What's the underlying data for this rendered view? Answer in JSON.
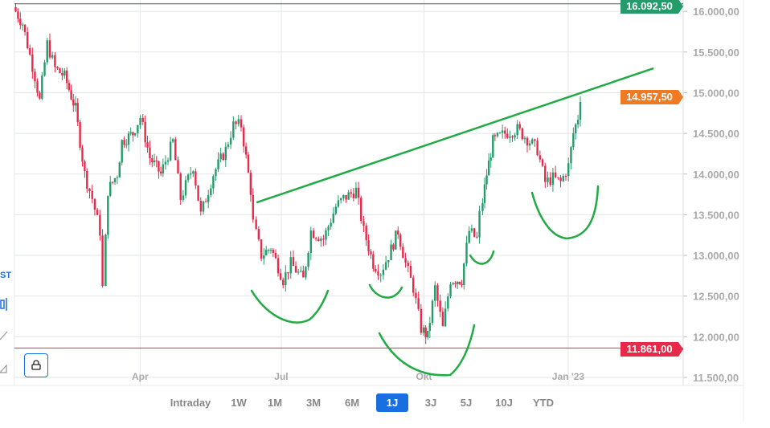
{
  "chart_data": {
    "type": "candlestick",
    "y_ticks": [
      "11.500,00",
      "12.000,00",
      "12.500,00",
      "13.000,00",
      "13.500,00",
      "14.000,00",
      "14.500,00",
      "15.000,00",
      "15.500,00",
      "16.000,00"
    ],
    "y_tick_values": [
      11500,
      12000,
      12500,
      13000,
      13500,
      14000,
      14500,
      15000,
      15500,
      16000
    ],
    "ylim": [
      11450,
      16150
    ],
    "x_ticks": [
      {
        "label": "Apr",
        "date": "2022-04-01"
      },
      {
        "label": "Jul",
        "date": "2022-07-01"
      },
      {
        "label": "Okt",
        "date": "2022-10-01"
      },
      {
        "label": "Jan '23",
        "date": "2023-01-02"
      }
    ],
    "xlim": [
      "2022-01-10",
      "2023-01-11"
    ],
    "grid": true,
    "closes": [
      [
        "2022-01-10",
        16050
      ],
      [
        "2022-01-16",
        15850
      ],
      [
        "2022-01-24",
        15200
      ],
      [
        "2022-01-27",
        14900
      ],
      [
        "2022-02-01",
        15600
      ],
      [
        "2022-02-06",
        15300
      ],
      [
        "2022-02-12",
        15200
      ],
      [
        "2022-02-19",
        14800
      ],
      [
        "2022-02-25",
        14000
      ],
      [
        "2022-03-02",
        13700
      ],
      [
        "2022-03-07",
        13300
      ],
      [
        "2022-03-09",
        12600
      ],
      [
        "2022-03-12",
        13800
      ],
      [
        "2022-03-18",
        14000
      ],
      [
        "2022-03-21",
        14400
      ],
      [
        "2022-03-28",
        14500
      ],
      [
        "2022-04-02",
        14700
      ],
      [
        "2022-04-08",
        14200
      ],
      [
        "2022-04-15",
        14000
      ],
      [
        "2022-04-23",
        14400
      ],
      [
        "2022-04-28",
        13700
      ],
      [
        "2022-05-06",
        14100
      ],
      [
        "2022-05-11",
        13500
      ],
      [
        "2022-05-19",
        14000
      ],
      [
        "2022-05-27",
        14300
      ],
      [
        "2022-06-01",
        14600
      ],
      [
        "2022-06-06",
        14600
      ],
      [
        "2022-06-12",
        13800
      ],
      [
        "2022-06-14",
        13400
      ],
      [
        "2022-06-19",
        13000
      ],
      [
        "2022-06-25",
        13100
      ],
      [
        "2022-07-03",
        12700
      ],
      [
        "2022-07-08",
        12900
      ],
      [
        "2022-07-16",
        12700
      ],
      [
        "2022-07-21",
        13300
      ],
      [
        "2022-07-29",
        13200
      ],
      [
        "2022-08-06",
        13600
      ],
      [
        "2022-08-11",
        13700
      ],
      [
        "2022-08-19",
        13800
      ],
      [
        "2022-08-24",
        13300
      ],
      [
        "2022-08-30",
        12900
      ],
      [
        "2022-09-04",
        12800
      ],
      [
        "2022-09-09",
        13000
      ],
      [
        "2022-09-15",
        13300
      ],
      [
        "2022-09-20",
        12900
      ],
      [
        "2022-09-25",
        12600
      ],
      [
        "2022-09-30",
        12100
      ],
      [
        "2022-10-04",
        12000
      ],
      [
        "2022-10-09",
        12600
      ],
      [
        "2022-10-14",
        12100
      ],
      [
        "2022-10-19",
        12700
      ],
      [
        "2022-10-26",
        12700
      ],
      [
        "2022-10-31",
        13300
      ],
      [
        "2022-11-05",
        13200
      ],
      [
        "2022-11-07",
        13500
      ],
      [
        "2022-11-11",
        14000
      ],
      [
        "2022-11-15",
        14400
      ],
      [
        "2022-11-23",
        14500
      ],
      [
        "2022-12-01",
        14550
      ],
      [
        "2022-12-09",
        14400
      ],
      [
        "2022-12-14",
        14300
      ],
      [
        "2022-12-19",
        13900
      ],
      [
        "2022-12-24",
        13950
      ],
      [
        "2022-12-29",
        13900
      ],
      [
        "2023-01-03",
        14100
      ],
      [
        "2023-01-06",
        14500
      ],
      [
        "2023-01-09",
        14700
      ],
      [
        "2023-01-11",
        14950
      ]
    ],
    "trendline": {
      "from": [
        "2022-06-15",
        13650
      ],
      "to": [
        "2023-02-26",
        15300
      ]
    },
    "horizontal_lines": [
      {
        "value": 16092.5,
        "label": "16.092,50",
        "color": "#239b6a"
      },
      {
        "value": 11861,
        "label": "11.861,00",
        "color": "#e8294a"
      }
    ],
    "last_price": {
      "value": 14957.5,
      "label": "14.957,50",
      "color": "#f07a24"
    },
    "colors": {
      "up": "#239b6a",
      "down": "#e8294a",
      "trendline": "#22aa44",
      "grid": "#e3e5ea"
    }
  },
  "toolbar": {
    "st_label": "ST"
  },
  "ranges": [
    {
      "label": "Intraday",
      "w": 64
    },
    {
      "label": "1W",
      "w": 30
    },
    {
      "label": "1M",
      "w": 34
    },
    {
      "label": "3M",
      "w": 36
    },
    {
      "label": "6M",
      "w": 34
    },
    {
      "label": "1J",
      "w": 40,
      "active": true
    },
    {
      "label": "3J",
      "w": 30
    },
    {
      "label": "5J",
      "w": 32
    },
    {
      "label": "10J",
      "w": 36
    },
    {
      "label": "YTD",
      "w": 36
    }
  ]
}
